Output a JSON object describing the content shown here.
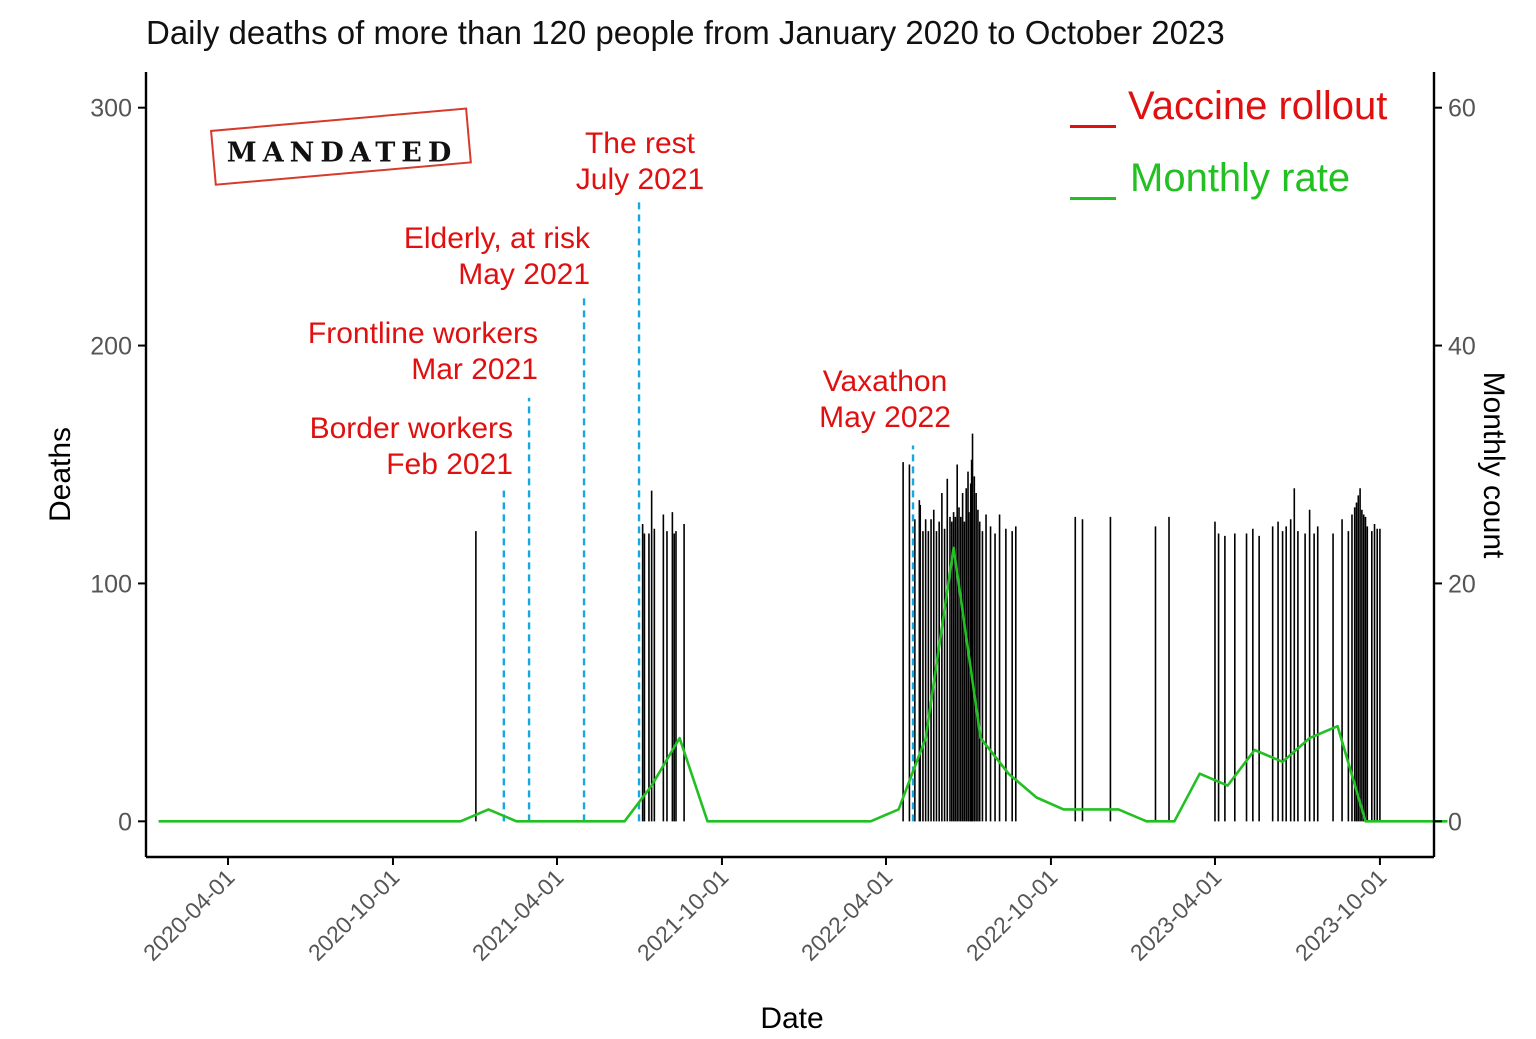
{
  "title": "Daily deaths of more than 120 people from January 2020 to October 2023",
  "stamp_text": "MANDATED",
  "colors": {
    "vaccine": "#e01010",
    "monthly": "#22c022",
    "rollout_line": "#1aa7e0",
    "bars": "#000000"
  },
  "chart_data": {
    "type": "bar",
    "xlabel": "Date",
    "ylabel": "Deaths",
    "y2label": "Monthly count",
    "xlim": [
      "2020-01-01",
      "2023-11-30"
    ],
    "ylim": [
      -15,
      315
    ],
    "y_ticks": [
      0,
      100,
      200,
      300
    ],
    "y2_ticks": [
      0,
      20,
      40,
      60
    ],
    "x_ticks": [
      "2020-04-01",
      "2020-10-01",
      "2021-04-01",
      "2021-10-01",
      "2022-04-01",
      "2022-10-01",
      "2023-04-01",
      "2023-10-01"
    ],
    "grid": false,
    "legend_position": "top-right",
    "legend": [
      {
        "label": "Vaccine rollout",
        "color": "#e01010"
      },
      {
        "label": "Monthly rate",
        "color": "#22c022"
      }
    ],
    "daily_deaths": [
      {
        "date": "2021-01-01",
        "value": 122
      },
      {
        "date": "2021-07-05",
        "value": 125
      },
      {
        "date": "2021-07-07",
        "value": 121
      },
      {
        "date": "2021-07-12",
        "value": 121
      },
      {
        "date": "2021-07-15",
        "value": 139
      },
      {
        "date": "2021-07-18",
        "value": 123
      },
      {
        "date": "2021-07-28",
        "value": 129
      },
      {
        "date": "2021-08-01",
        "value": 122
      },
      {
        "date": "2021-08-07",
        "value": 130
      },
      {
        "date": "2021-08-09",
        "value": 121
      },
      {
        "date": "2021-08-11",
        "value": 122
      },
      {
        "date": "2021-08-20",
        "value": 125
      },
      {
        "date": "2022-04-20",
        "value": 151
      },
      {
        "date": "2022-04-27",
        "value": 150
      },
      {
        "date": "2022-05-03",
        "value": 127
      },
      {
        "date": "2022-05-08",
        "value": 135
      },
      {
        "date": "2022-05-09",
        "value": 133
      },
      {
        "date": "2022-05-12",
        "value": 122
      },
      {
        "date": "2022-05-15",
        "value": 127
      },
      {
        "date": "2022-05-18",
        "value": 122
      },
      {
        "date": "2022-05-21",
        "value": 127
      },
      {
        "date": "2022-05-24",
        "value": 131
      },
      {
        "date": "2022-05-27",
        "value": 122
      },
      {
        "date": "2022-05-30",
        "value": 126
      },
      {
        "date": "2022-06-02",
        "value": 138
      },
      {
        "date": "2022-06-05",
        "value": 123
      },
      {
        "date": "2022-06-08",
        "value": 144
      },
      {
        "date": "2022-06-11",
        "value": 128
      },
      {
        "date": "2022-06-13",
        "value": 126
      },
      {
        "date": "2022-06-15",
        "value": 130
      },
      {
        "date": "2022-06-17",
        "value": 128
      },
      {
        "date": "2022-06-19",
        "value": 150
      },
      {
        "date": "2022-06-21",
        "value": 132
      },
      {
        "date": "2022-06-23",
        "value": 128
      },
      {
        "date": "2022-06-25",
        "value": 138
      },
      {
        "date": "2022-06-27",
        "value": 126
      },
      {
        "date": "2022-06-29",
        "value": 140
      },
      {
        "date": "2022-07-01",
        "value": 147
      },
      {
        "date": "2022-07-02",
        "value": 130
      },
      {
        "date": "2022-07-04",
        "value": 142
      },
      {
        "date": "2022-07-05",
        "value": 152
      },
      {
        "date": "2022-07-06",
        "value": 163
      },
      {
        "date": "2022-07-08",
        "value": 145
      },
      {
        "date": "2022-07-10",
        "value": 138
      },
      {
        "date": "2022-07-12",
        "value": 131
      },
      {
        "date": "2022-07-14",
        "value": 126
      },
      {
        "date": "2022-07-17",
        "value": 122
      },
      {
        "date": "2022-07-21",
        "value": 129
      },
      {
        "date": "2022-07-26",
        "value": 124
      },
      {
        "date": "2022-07-31",
        "value": 121
      },
      {
        "date": "2022-08-05",
        "value": 129
      },
      {
        "date": "2022-08-12",
        "value": 123
      },
      {
        "date": "2022-08-19",
        "value": 122
      },
      {
        "date": "2022-08-23",
        "value": 124
      },
      {
        "date": "2022-10-28",
        "value": 128
      },
      {
        "date": "2022-11-05",
        "value": 127
      },
      {
        "date": "2022-12-06",
        "value": 128
      },
      {
        "date": "2023-01-25",
        "value": 124
      },
      {
        "date": "2023-02-09",
        "value": 128
      },
      {
        "date": "2023-04-01",
        "value": 126
      },
      {
        "date": "2023-04-05",
        "value": 121
      },
      {
        "date": "2023-04-12",
        "value": 120
      },
      {
        "date": "2023-04-23",
        "value": 121
      },
      {
        "date": "2023-05-06",
        "value": 121
      },
      {
        "date": "2023-05-13",
        "value": 123
      },
      {
        "date": "2023-05-20",
        "value": 120
      },
      {
        "date": "2023-06-04",
        "value": 124
      },
      {
        "date": "2023-06-10",
        "value": 126
      },
      {
        "date": "2023-06-15",
        "value": 122
      },
      {
        "date": "2023-06-19",
        "value": 124
      },
      {
        "date": "2023-06-24",
        "value": 127
      },
      {
        "date": "2023-06-28",
        "value": 140
      },
      {
        "date": "2023-07-02",
        "value": 122
      },
      {
        "date": "2023-07-10",
        "value": 121
      },
      {
        "date": "2023-07-15",
        "value": 131
      },
      {
        "date": "2023-07-20",
        "value": 121
      },
      {
        "date": "2023-07-24",
        "value": 124
      },
      {
        "date": "2023-08-10",
        "value": 121
      },
      {
        "date": "2023-08-20",
        "value": 127
      },
      {
        "date": "2023-08-27",
        "value": 122
      },
      {
        "date": "2023-08-31",
        "value": 129
      },
      {
        "date": "2023-09-03",
        "value": 132
      },
      {
        "date": "2023-09-05",
        "value": 134
      },
      {
        "date": "2023-09-07",
        "value": 137
      },
      {
        "date": "2023-09-09",
        "value": 140
      },
      {
        "date": "2023-09-11",
        "value": 131
      },
      {
        "date": "2023-09-13",
        "value": 129
      },
      {
        "date": "2023-09-15",
        "value": 128
      },
      {
        "date": "2023-09-17",
        "value": 124
      },
      {
        "date": "2023-09-22",
        "value": 122
      },
      {
        "date": "2023-09-25",
        "value": 125
      },
      {
        "date": "2023-09-28",
        "value": 123
      },
      {
        "date": "2023-10-01",
        "value": 123
      }
    ],
    "monthly_rate": {
      "name": "Monthly rate",
      "axis": "right",
      "x": [
        "2020-01-15",
        "2020-02-15",
        "2020-03-15",
        "2020-04-15",
        "2020-05-15",
        "2020-06-15",
        "2020-07-15",
        "2020-08-15",
        "2020-09-15",
        "2020-10-15",
        "2020-11-15",
        "2020-12-15",
        "2021-01-15",
        "2021-02-15",
        "2021-03-15",
        "2021-04-15",
        "2021-05-15",
        "2021-06-15",
        "2021-07-15",
        "2021-08-15",
        "2021-09-15",
        "2021-10-15",
        "2021-11-15",
        "2021-12-15",
        "2022-01-15",
        "2022-02-15",
        "2022-03-15",
        "2022-04-15",
        "2022-05-15",
        "2022-06-15",
        "2022-07-15",
        "2022-08-15",
        "2022-09-15",
        "2022-10-15",
        "2022-11-15",
        "2022-12-15",
        "2023-01-15",
        "2023-02-15",
        "2023-03-15",
        "2023-04-15",
        "2023-05-15",
        "2023-06-15",
        "2023-07-15",
        "2023-08-15",
        "2023-09-15",
        "2023-10-15",
        "2023-11-15",
        "2023-12-15"
      ],
      "values": [
        0,
        0,
        0,
        0,
        0,
        0,
        0,
        0,
        0,
        0,
        0,
        0,
        1,
        0,
        0,
        0,
        0,
        0,
        3,
        7,
        0,
        0,
        0,
        0,
        0,
        0,
        0,
        1,
        7,
        23,
        7,
        4,
        2,
        1,
        1,
        1,
        0,
        0,
        4,
        3,
        6,
        5,
        7,
        8,
        0,
        0,
        0,
        0
      ]
    },
    "rollout_events": [
      {
        "date": "2021-02-01",
        "label_line1": "Border workers",
        "label_line2": "Feb 2021",
        "height": 139
      },
      {
        "date": "2021-03-01",
        "label_line1": "Frontline workers",
        "label_line2": "Mar 2021",
        "height": 178
      },
      {
        "date": "2021-05-01",
        "label_line1": "Elderly, at risk",
        "label_line2": "May 2021",
        "height": 221
      },
      {
        "date": "2021-07-01",
        "label_line1": "The rest",
        "label_line2": "July 2021",
        "height": 261
      },
      {
        "date": "2022-05-01",
        "label_line1": "Vaxathon",
        "label_line2": "May 2022",
        "height": 158
      }
    ]
  }
}
